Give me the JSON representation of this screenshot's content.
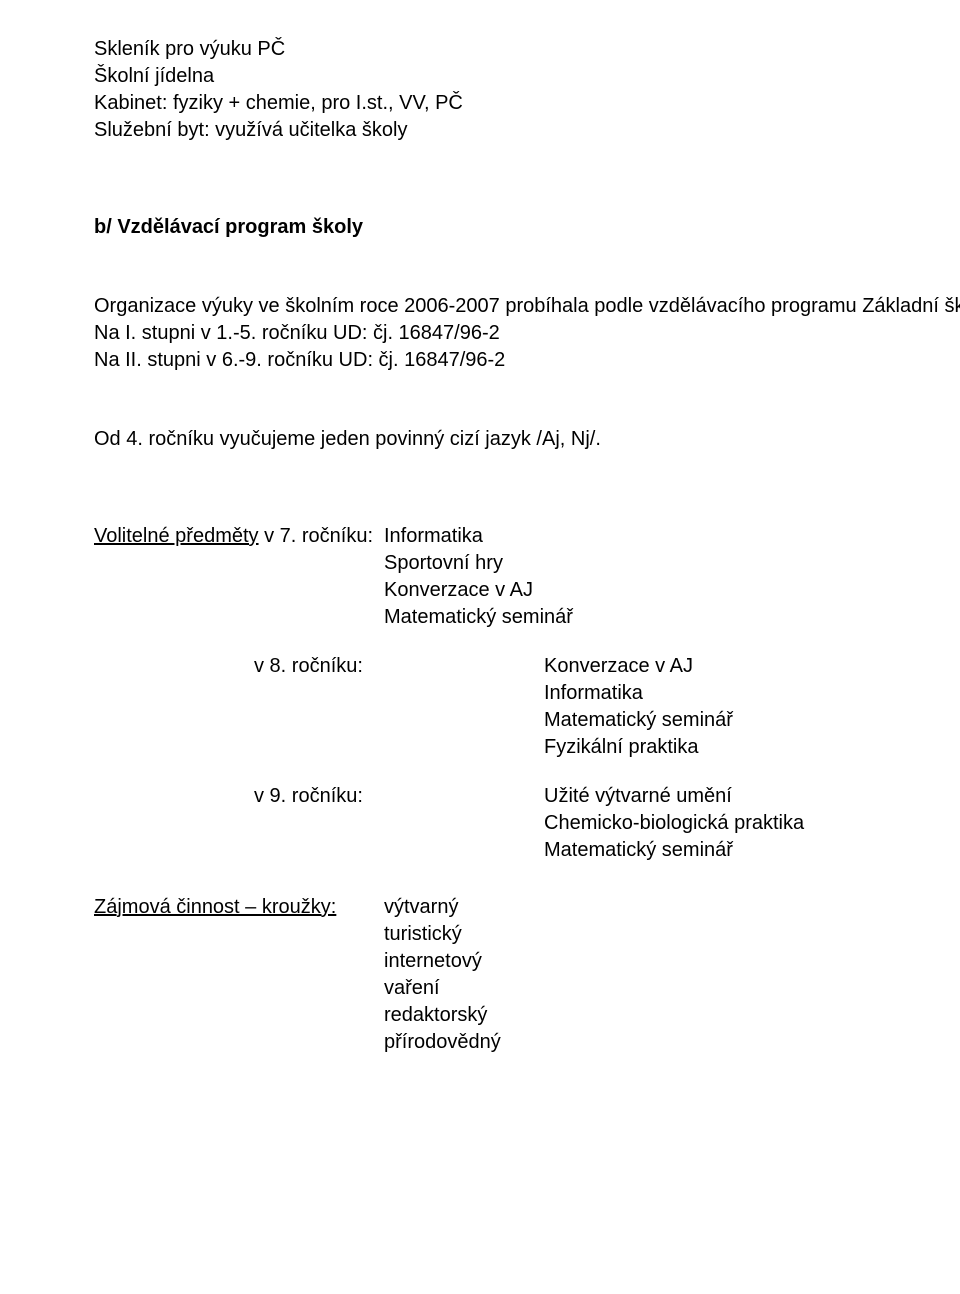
{
  "top_lines": [
    "Skleník pro výuku PČ",
    "Školní jídelna",
    "Kabinet: fyziky + chemie, pro I.st., VV, PČ",
    "Služební byt:  využívá učitelka školy"
  ],
  "section_b": {
    "heading": "b/ Vzdělávací program školy",
    "body": [
      "Organizace výuky ve školním roce 2006-2007 probíhala podle vzdělávacího programu Základní škola.",
      "Na  I. stupni  v 1.-5. ročníku  UD: čj. 16847/96-2",
      "Na II. stupni  v 6.-9. ročníku  UD: čj. 16847/96-2"
    ],
    "od4": "Od 4. ročníku vyučujeme jeden povinný cizí jazyk /Aj, Nj/."
  },
  "volitelne": {
    "label": "Volitelné předměty",
    "v7": {
      "prefix": " v 7. ročníku:",
      "items": [
        "Informatika",
        "Sportovní hry",
        "Konverzace v AJ",
        "Matematický seminář"
      ]
    },
    "v8": {
      "prefix": "v 8. ročníku:",
      "items": [
        "Konverzace v AJ",
        "Informatika",
        "Matematický seminář",
        "Fyzikální praktika"
      ]
    },
    "v9": {
      "prefix": "v 9. ročníku:",
      "items": [
        "Užité výtvarné umění",
        "Chemicko-biologická praktika",
        "Matematický seminář"
      ]
    }
  },
  "krouzky": {
    "label": "Zájmová činnost – kroužky:",
    "items": [
      "výtvarný",
      "turistický",
      "internetový",
      "vaření",
      "redaktorský",
      "přírodovědný"
    ]
  }
}
